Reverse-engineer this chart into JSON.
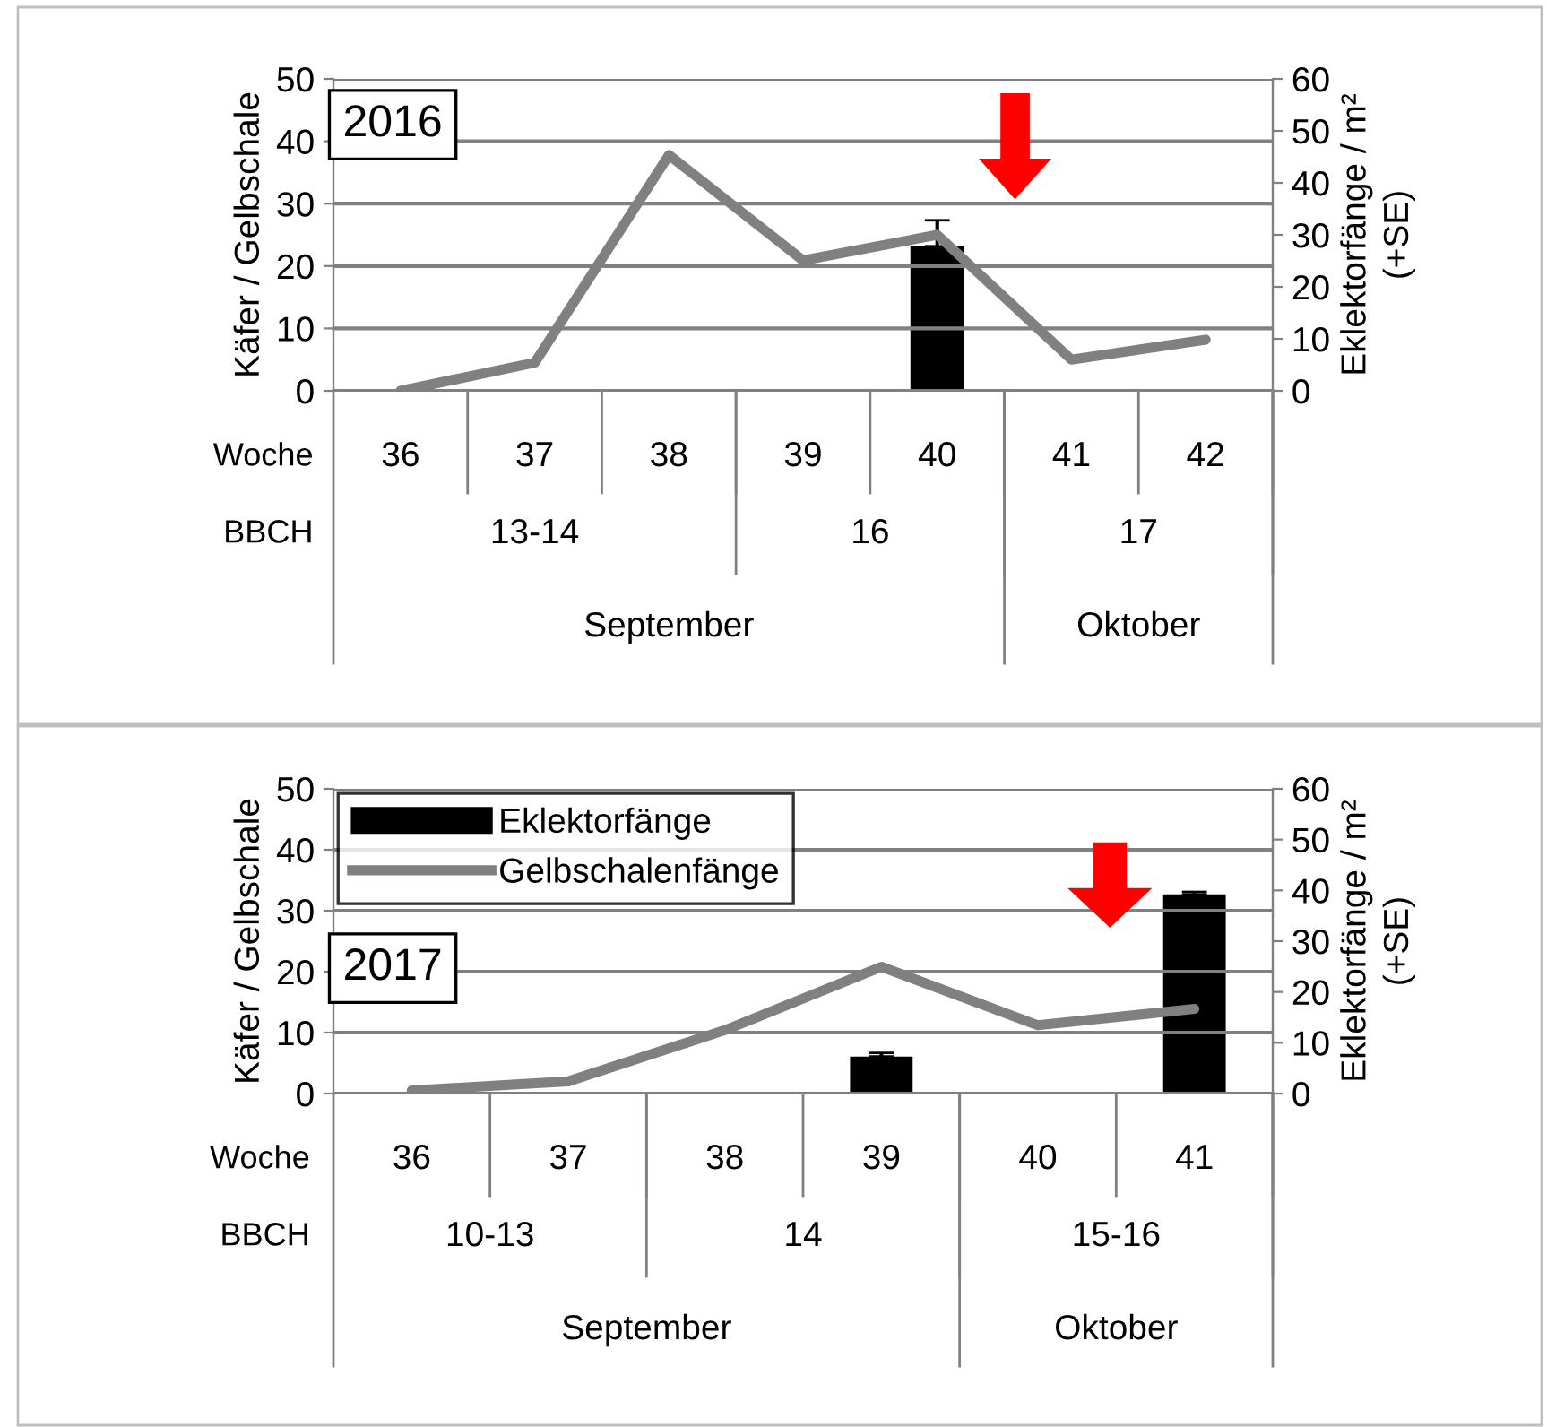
{
  "chart_data": [
    {
      "type": "bar",
      "categories": [
        "36",
        "37",
        "38",
        "39",
        "40",
        "41",
        "42"
      ],
      "ylabel": "Käfer / Gelbschale",
      "y2label": "Eklektorfänge / m²\n(+SE)",
      "ylim": [
        0,
        50
      ],
      "yticks": [
        0,
        10,
        20,
        30,
        40,
        50
      ],
      "y2lim": [
        0,
        60
      ],
      "y2ticks": [
        0,
        10,
        20,
        30,
        40,
        50,
        60
      ],
      "grid": "y",
      "series": [
        {
          "axis": "y2",
          "color": "#000000",
          "values": [
            null,
            null,
            null,
            null,
            27.8,
            null,
            null
          ],
          "errors": [
            null,
            null,
            null,
            null,
            5,
            null,
            null
          ]
        },
        {
          "type": "line",
          "color": "#808080",
          "values": [
            0,
            4.5,
            37.8,
            20.9,
            25,
            5.0,
            8.2
          ]
        }
      ],
      "annotations": [
        "2016",
        "Woche",
        "BBCH",
        "13-14",
        "16",
        "17",
        "September",
        "Oktober"
      ]
    },
    {
      "type": "bar",
      "categories": [
        "36",
        "37",
        "38",
        "39",
        "40",
        "41"
      ],
      "ylabel": "Käfer / Gelbschale",
      "y2label": "Eklektorfänge / m²\n(+SE)",
      "ylim": [
        0,
        50
      ],
      "yticks": [
        0,
        10,
        20,
        30,
        40,
        50
      ],
      "y2lim": [
        0,
        60
      ],
      "y2ticks": [
        0,
        10,
        20,
        30,
        40,
        50,
        60
      ],
      "grid": "y",
      "legend": "top left",
      "series": [
        {
          "axis": "y2",
          "name": "Eklektorfänge",
          "color": "#000000",
          "values": [
            null,
            null,
            null,
            7.3,
            null,
            39.2
          ],
          "errors": [
            null,
            null,
            null,
            0.7,
            null,
            0.5
          ]
        },
        {
          "type": "line",
          "name": "Gelbschalenfänge",
          "color": "#808080",
          "values": [
            0.5,
            2.0,
            10.4,
            20.8,
            11.2,
            13.9
          ]
        }
      ],
      "annotations": [
        "2017",
        "Woche",
        "BBCH",
        "10-13",
        "14",
        "15-16",
        "September",
        "Oktober"
      ]
    }
  ]
}
